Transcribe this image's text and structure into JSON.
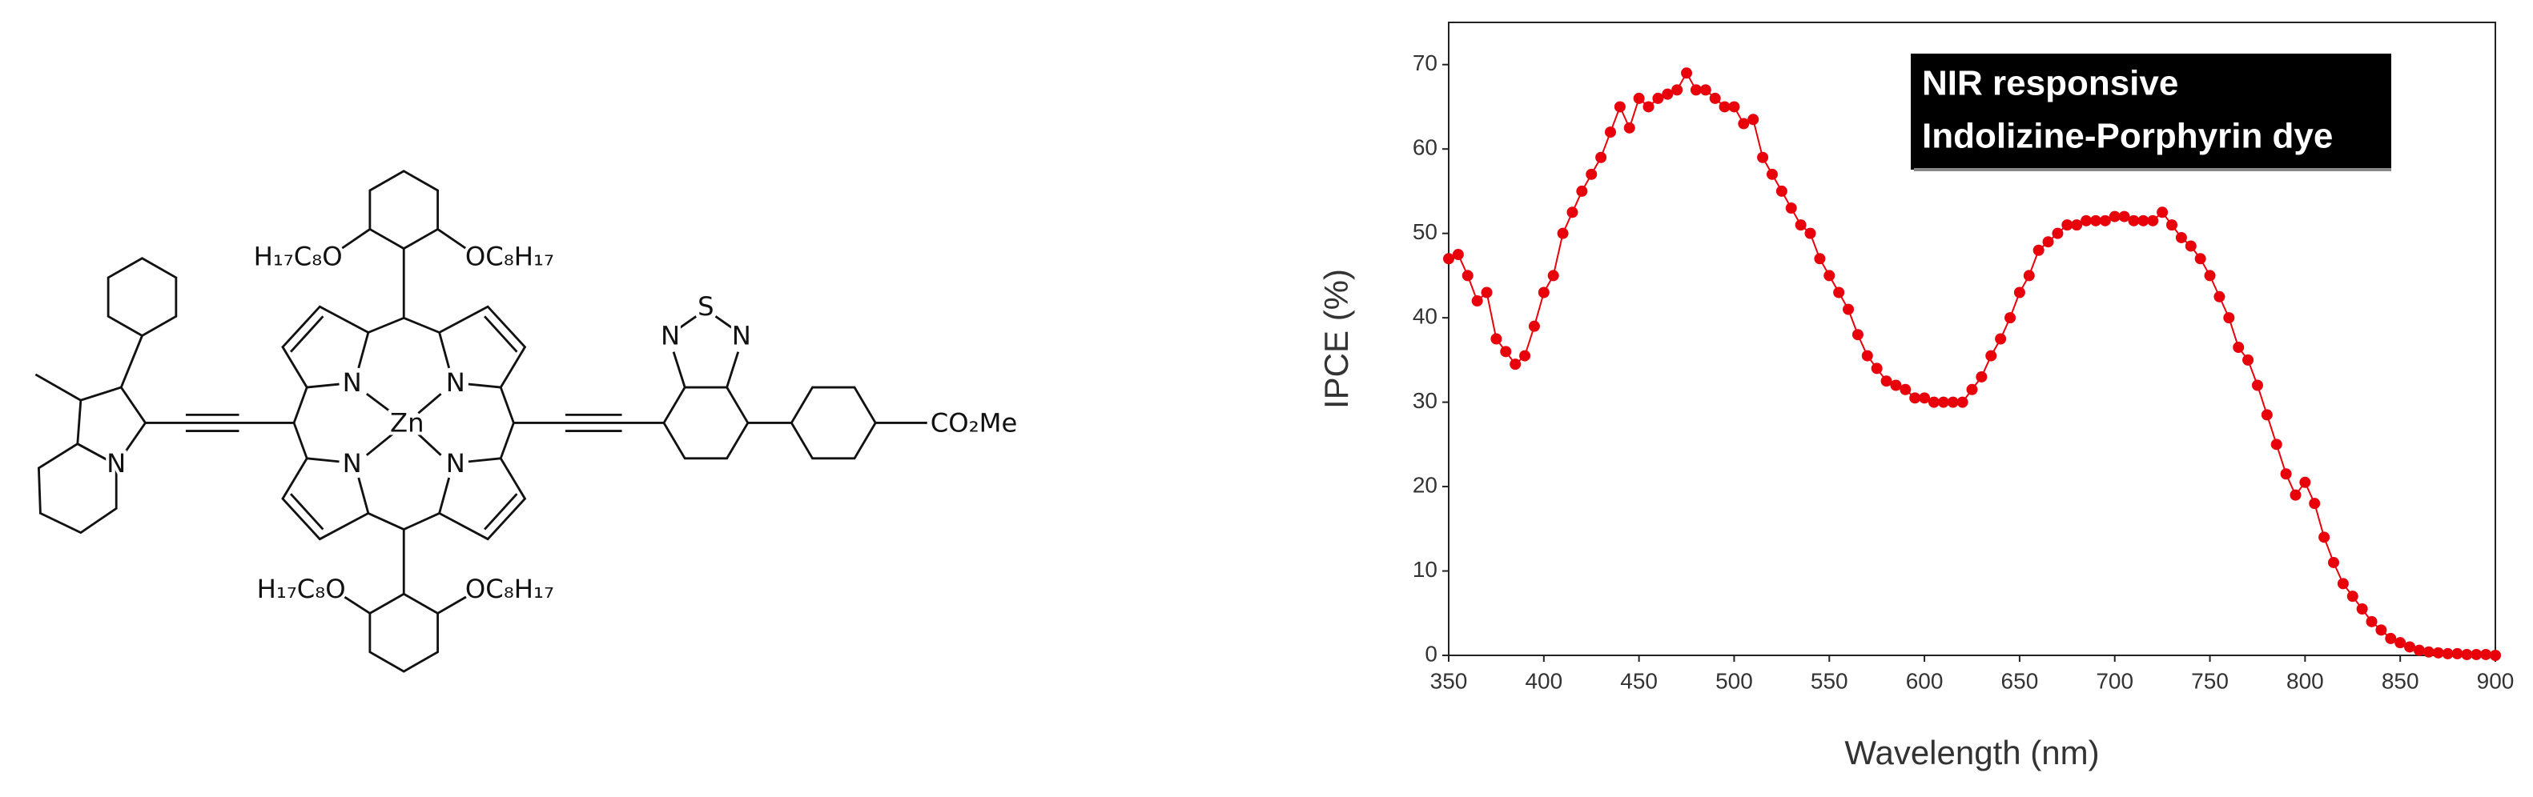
{
  "structure": {
    "labels": [
      "N",
      "N",
      "N",
      "N",
      "Zn",
      "H₁₇C₈O",
      "OC₈H₁₇",
      "H₁₇C₈O",
      "OC₈H₁₇",
      "N",
      "N",
      "S",
      "N",
      "CO₂Me"
    ]
  },
  "chart_data": {
    "type": "line",
    "annotation": [
      "NIR responsive",
      "Indolizine-Porphyrin dye"
    ],
    "x_label": "Wavelength (nm)",
    "y_label": "IPCE (%)",
    "x": [
      350,
      355,
      360,
      365,
      370,
      375,
      380,
      385,
      390,
      395,
      400,
      405,
      410,
      415,
      420,
      425,
      430,
      435,
      440,
      445,
      450,
      455,
      460,
      465,
      470,
      475,
      480,
      485,
      490,
      495,
      500,
      505,
      510,
      515,
      520,
      525,
      530,
      535,
      540,
      545,
      550,
      555,
      560,
      565,
      570,
      575,
      580,
      585,
      590,
      595,
      600,
      605,
      610,
      615,
      620,
      625,
      630,
      635,
      640,
      645,
      650,
      655,
      660,
      665,
      670,
      675,
      680,
      685,
      690,
      695,
      700,
      705,
      710,
      715,
      720,
      725,
      730,
      735,
      740,
      745,
      750,
      755,
      760,
      765,
      770,
      775,
      780,
      785,
      790,
      795,
      800,
      805,
      810,
      815,
      820,
      825,
      830,
      835,
      840,
      845,
      850,
      855,
      860,
      865,
      870,
      875,
      880,
      885,
      890,
      895,
      900
    ],
    "series": [
      {
        "color": "#e8000b",
        "values": [
          47,
          47.5,
          45,
          42,
          43,
          37.5,
          36,
          34.5,
          35.5,
          39,
          43,
          45,
          50,
          52.5,
          55,
          57,
          59,
          62,
          65,
          62.5,
          66,
          65,
          66,
          66.5,
          67,
          69,
          67,
          67,
          66,
          65,
          65,
          63,
          63.5,
          59,
          57,
          55,
          53,
          51,
          50,
          47,
          45,
          43,
          41,
          38,
          35.5,
          34,
          32.5,
          32,
          31.5,
          30.5,
          30.5,
          30,
          30,
          30,
          30,
          31.5,
          33,
          35.5,
          37.5,
          40,
          43,
          45,
          48,
          49,
          50,
          51,
          51,
          51.5,
          51.5,
          51.5,
          52,
          52,
          51.5,
          51.5,
          51.5,
          52.5,
          51,
          49.5,
          48.5,
          47,
          45,
          42.5,
          40,
          36.5,
          35,
          32,
          28.5,
          25,
          21.5,
          19,
          20.5,
          18,
          14,
          11,
          8.5,
          7,
          5.5,
          4,
          3,
          2,
          1.5,
          1,
          0.6,
          0.4,
          0.3,
          0.2,
          0.2,
          0.1,
          0.1,
          0.1,
          0
        ]
      }
    ],
    "xlim": [
      350,
      900
    ],
    "xticks": [
      350,
      400,
      450,
      500,
      550,
      600,
      650,
      700,
      750,
      800,
      850,
      900
    ],
    "ylim": [
      0,
      75
    ],
    "yticks": [
      0,
      10,
      20,
      30,
      40,
      50,
      60,
      70
    ],
    "grid": false
  }
}
